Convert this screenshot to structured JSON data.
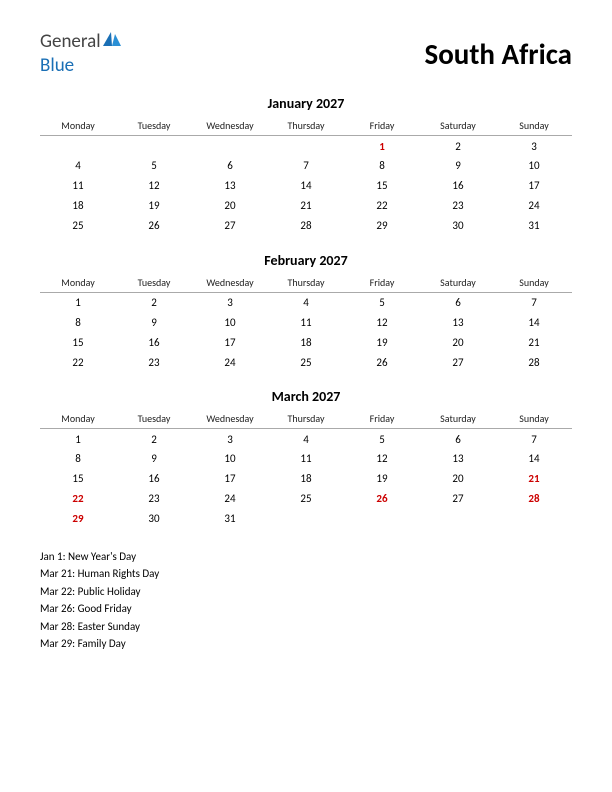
{
  "logo": {
    "general": "General",
    "blue": "Blue"
  },
  "country": "South Africa",
  "weekdays": [
    "Monday",
    "Tuesday",
    "Wednesday",
    "Thursday",
    "Friday",
    "Saturday",
    "Sunday"
  ],
  "months": [
    {
      "title": "January 2027",
      "weeks": [
        [
          null,
          null,
          null,
          null,
          {
            "d": 1,
            "h": true
          },
          {
            "d": 2
          },
          {
            "d": 3
          }
        ],
        [
          {
            "d": 4
          },
          {
            "d": 5
          },
          {
            "d": 6
          },
          {
            "d": 7
          },
          {
            "d": 8
          },
          {
            "d": 9
          },
          {
            "d": 10
          }
        ],
        [
          {
            "d": 11
          },
          {
            "d": 12
          },
          {
            "d": 13
          },
          {
            "d": 14
          },
          {
            "d": 15
          },
          {
            "d": 16
          },
          {
            "d": 17
          }
        ],
        [
          {
            "d": 18
          },
          {
            "d": 19
          },
          {
            "d": 20
          },
          {
            "d": 21
          },
          {
            "d": 22
          },
          {
            "d": 23
          },
          {
            "d": 24
          }
        ],
        [
          {
            "d": 25
          },
          {
            "d": 26
          },
          {
            "d": 27
          },
          {
            "d": 28
          },
          {
            "d": 29
          },
          {
            "d": 30
          },
          {
            "d": 31
          }
        ]
      ]
    },
    {
      "title": "February 2027",
      "weeks": [
        [
          {
            "d": 1
          },
          {
            "d": 2
          },
          {
            "d": 3
          },
          {
            "d": 4
          },
          {
            "d": 5
          },
          {
            "d": 6
          },
          {
            "d": 7
          }
        ],
        [
          {
            "d": 8
          },
          {
            "d": 9
          },
          {
            "d": 10
          },
          {
            "d": 11
          },
          {
            "d": 12
          },
          {
            "d": 13
          },
          {
            "d": 14
          }
        ],
        [
          {
            "d": 15
          },
          {
            "d": 16
          },
          {
            "d": 17
          },
          {
            "d": 18
          },
          {
            "d": 19
          },
          {
            "d": 20
          },
          {
            "d": 21
          }
        ],
        [
          {
            "d": 22
          },
          {
            "d": 23
          },
          {
            "d": 24
          },
          {
            "d": 25
          },
          {
            "d": 26
          },
          {
            "d": 27
          },
          {
            "d": 28
          }
        ]
      ]
    },
    {
      "title": "March 2027",
      "weeks": [
        [
          {
            "d": 1
          },
          {
            "d": 2
          },
          {
            "d": 3
          },
          {
            "d": 4
          },
          {
            "d": 5
          },
          {
            "d": 6
          },
          {
            "d": 7
          }
        ],
        [
          {
            "d": 8
          },
          {
            "d": 9
          },
          {
            "d": 10
          },
          {
            "d": 11
          },
          {
            "d": 12
          },
          {
            "d": 13
          },
          {
            "d": 14
          }
        ],
        [
          {
            "d": 15
          },
          {
            "d": 16
          },
          {
            "d": 17
          },
          {
            "d": 18
          },
          {
            "d": 19
          },
          {
            "d": 20
          },
          {
            "d": 21,
            "h": true
          }
        ],
        [
          {
            "d": 22,
            "h": true
          },
          {
            "d": 23
          },
          {
            "d": 24
          },
          {
            "d": 25
          },
          {
            "d": 26,
            "h": true
          },
          {
            "d": 27
          },
          {
            "d": 28,
            "h": true
          }
        ],
        [
          {
            "d": 29,
            "h": true
          },
          {
            "d": 30
          },
          {
            "d": 31
          },
          null,
          null,
          null,
          null
        ]
      ]
    }
  ],
  "holidays": [
    "Jan 1: New Year's Day",
    "Mar 21: Human Rights Day",
    "Mar 22: Public Holiday",
    "Mar 26: Good Friday",
    "Mar 28: Easter Sunday",
    "Mar 29: Family Day"
  ],
  "colors": {
    "holiday_text": "#cc0000",
    "logo_blue": "#1a6fb5",
    "text": "#000000"
  }
}
